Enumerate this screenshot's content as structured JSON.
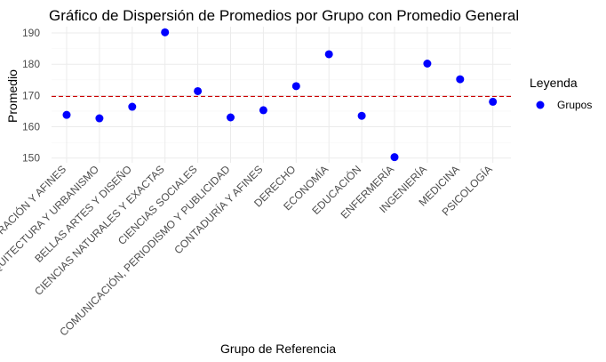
{
  "chart_data": {
    "type": "scatter",
    "title": "Gráfico de Dispersión de Promedios por Grupo con Promedio General",
    "xlabel": "Grupo de Referencia",
    "ylabel": "Promedio",
    "categories": [
      "ADMINISTRACIÓN Y AFINES",
      "ARQUITECTURA Y URBANISMO",
      "BELLAS ARTES Y DISEÑO",
      "CIENCIAS NATURALES Y EXACTAS",
      "CIENCIAS SOCIALES",
      "COMUNICACIÓN, PERIODISMO Y PUBLICIDAD",
      "CONTADURÍA Y AFINES",
      "DERECHO",
      "ECONOMÍA",
      "EDUCACIÓN",
      "ENFERMERÍA",
      "INGENIERÍA",
      "MEDICINA",
      "PSICOLOGÍA"
    ],
    "series": [
      {
        "name": "Grupos",
        "color": "#0000ff",
        "values": [
          163.8,
          162.7,
          166.4,
          190.2,
          171.4,
          163.0,
          165.3,
          173.0,
          183.2,
          163.5,
          150.3,
          180.2,
          175.2,
          168.0
        ]
      }
    ],
    "reference_line": {
      "value": 169.7,
      "color": "#cc0000",
      "style": "dashed"
    },
    "yticks": [
      150,
      160,
      170,
      180,
      190
    ],
    "ylim": [
      148.5,
      192
    ],
    "grid": true,
    "legend": {
      "title": "Leyenda",
      "position": "right",
      "entries": [
        "Grupos"
      ]
    }
  }
}
